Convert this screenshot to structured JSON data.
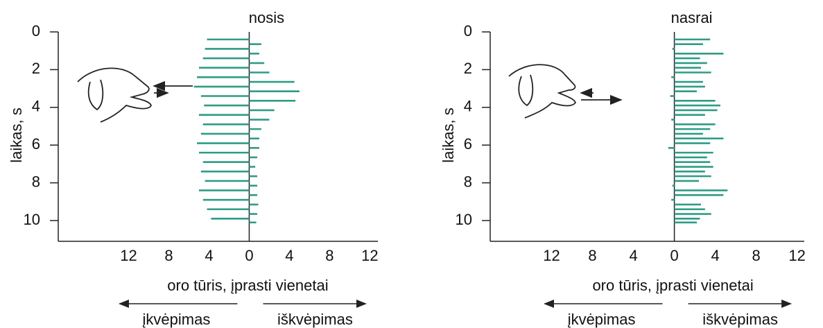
{
  "chart_data": [
    {
      "type": "bar",
      "orientation": "horizontal",
      "title": "nosis",
      "y_label": "laikas, s",
      "x_label": "oro tūris, įprasti vienetai",
      "inhale_label": "įkvėpimas",
      "exhale_label": "iškvėpimas",
      "color": "#2e9c86",
      "y": [
        0.4,
        0.65,
        0.9,
        1.15,
        1.4,
        1.65,
        1.9,
        2.15,
        2.4,
        2.65,
        2.9,
        3.15,
        3.4,
        3.65,
        3.9,
        4.15,
        4.4,
        4.65,
        4.9,
        5.15,
        5.4,
        5.65,
        5.9,
        6.15,
        6.4,
        6.65,
        6.9,
        7.15,
        7.4,
        7.65,
        7.9,
        8.15,
        8.4,
        8.65,
        8.9,
        9.15,
        9.4,
        9.65,
        9.9,
        10.1
      ],
      "values": [
        -4.2,
        1.2,
        -4.4,
        1.0,
        -4.6,
        1.5,
        -5.0,
        2.0,
        -5.2,
        4.5,
        -5.5,
        5.0,
        -4.8,
        4.6,
        -4.5,
        2.5,
        -5.0,
        2.0,
        -4.6,
        1.2,
        -4.8,
        1.0,
        -5.2,
        1.0,
        -5.0,
        0.8,
        -4.6,
        0.6,
        -4.8,
        0.8,
        -4.4,
        0.8,
        -5.0,
        0.8,
        -4.6,
        0.9,
        -4.2,
        0.8,
        -3.8,
        0.7
      ],
      "xlim": [
        -19,
        12.8
      ],
      "ylim": [
        0,
        11.1
      ],
      "xticks": [
        {
          "value": -12,
          "label": "12"
        },
        {
          "value": -8,
          "label": "8"
        },
        {
          "value": -4,
          "label": "4"
        },
        0,
        4,
        8,
        12
      ],
      "yticks": [
        0,
        2,
        4,
        6,
        8,
        10
      ],
      "y_inverted": true
    },
    {
      "type": "bar",
      "orientation": "horizontal",
      "title": "nasrai",
      "y_label": "laikas, s",
      "x_label": "oro tūris, įprasti vienetai",
      "inhale_label": "įkvėpimas",
      "exhale_label": "iškvėpimas",
      "color": "#2e9c86",
      "y": [
        0.4,
        0.65,
        0.9,
        1.15,
        1.4,
        1.65,
        1.9,
        2.15,
        2.4,
        2.65,
        2.9,
        3.15,
        3.4,
        3.65,
        3.9,
        4.15,
        4.4,
        4.65,
        4.9,
        5.15,
        5.4,
        5.65,
        5.9,
        6.15,
        6.4,
        6.65,
        6.9,
        7.15,
        7.4,
        7.65,
        7.9,
        8.15,
        8.4,
        8.65,
        8.9,
        9.15,
        9.4,
        9.65,
        9.9,
        10.1
      ],
      "values": [
        3.5,
        2.8,
        -0.2,
        4.8,
        2.5,
        3.2,
        2.6,
        3.6,
        -0.3,
        2.8,
        3.0,
        2.2,
        -0.4,
        4.0,
        4.5,
        4.2,
        3.0,
        -0.3,
        4.0,
        3.5,
        2.8,
        4.8,
        3.5,
        -0.6,
        3.8,
        3.2,
        3.5,
        3.8,
        3.0,
        3.6,
        2.4,
        -0.2,
        5.2,
        4.8,
        -0.3,
        2.6,
        3.0,
        3.6,
        2.5,
        2.2
      ],
      "xlim": [
        -18,
        12.7
      ],
      "ylim": [
        0,
        11.1
      ],
      "xticks": [
        {
          "value": -12,
          "label": "12"
        },
        {
          "value": -8,
          "label": "8"
        },
        {
          "value": -4,
          "label": "4"
        },
        0,
        4,
        8,
        12
      ],
      "yticks": [
        0,
        2,
        4,
        6,
        8,
        10
      ],
      "y_inverted": true
    }
  ]
}
